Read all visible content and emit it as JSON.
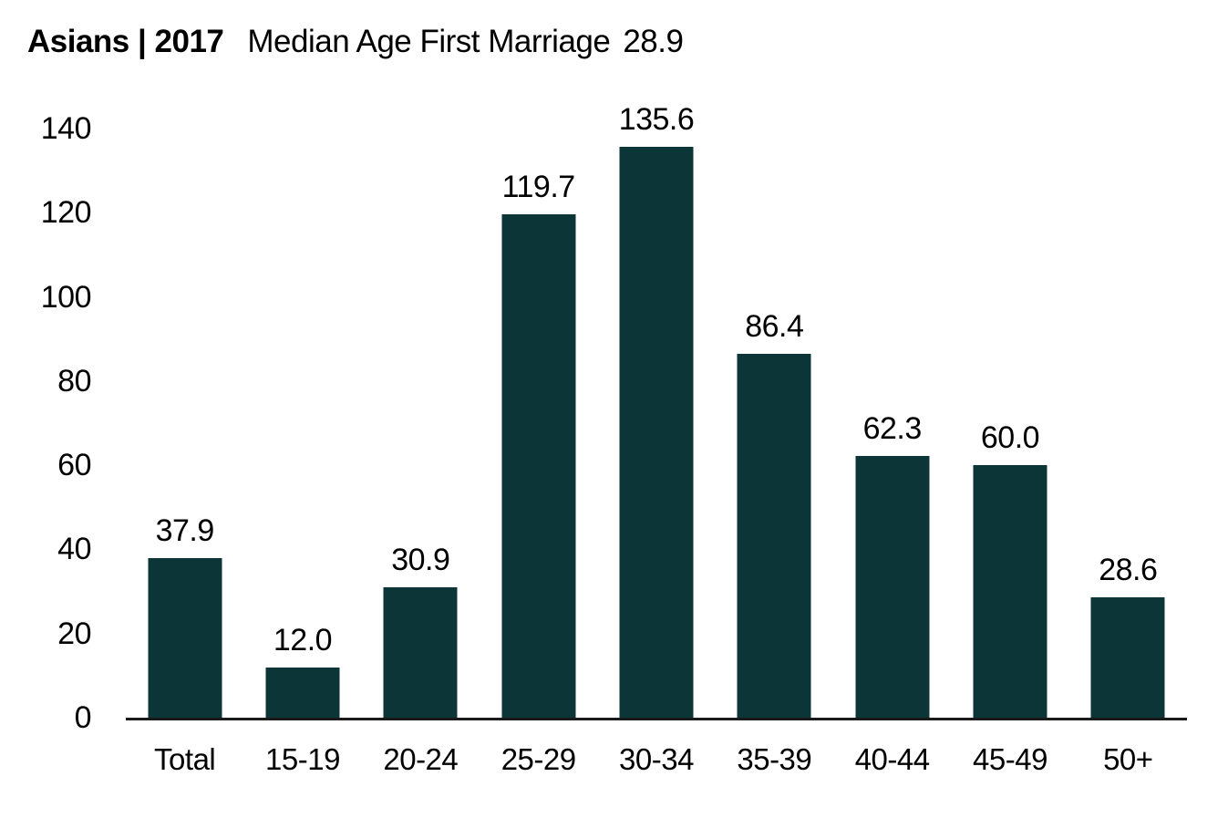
{
  "title": {
    "prefix": "Asians | 2017",
    "rest": "Median Age First Marriage",
    "median_value": "28.9"
  },
  "chart_data": {
    "type": "bar",
    "title": "Asians | 2017 Median Age First Marriage 28.9",
    "categories": [
      "Total",
      "15-19",
      "20-24",
      "25-29",
      "30-34",
      "35-39",
      "40-44",
      "45-49",
      "50+"
    ],
    "values": [
      37.9,
      12.0,
      30.9,
      119.7,
      135.6,
      86.4,
      62.3,
      60.0,
      28.6
    ],
    "value_labels": [
      "37.9",
      "12.0",
      "30.9",
      "119.7",
      "135.6",
      "86.4",
      "62.3",
      "60.0",
      "28.6"
    ],
    "xlabel": "",
    "ylabel": "",
    "ylim": [
      0,
      140
    ],
    "yticks": [
      0,
      20,
      40,
      60,
      80,
      100,
      120,
      140
    ],
    "bar_color": "#0c3537",
    "axis_line_color": "#1a1a1a",
    "grid": false,
    "legend": false,
    "data_labels_shown": true
  }
}
